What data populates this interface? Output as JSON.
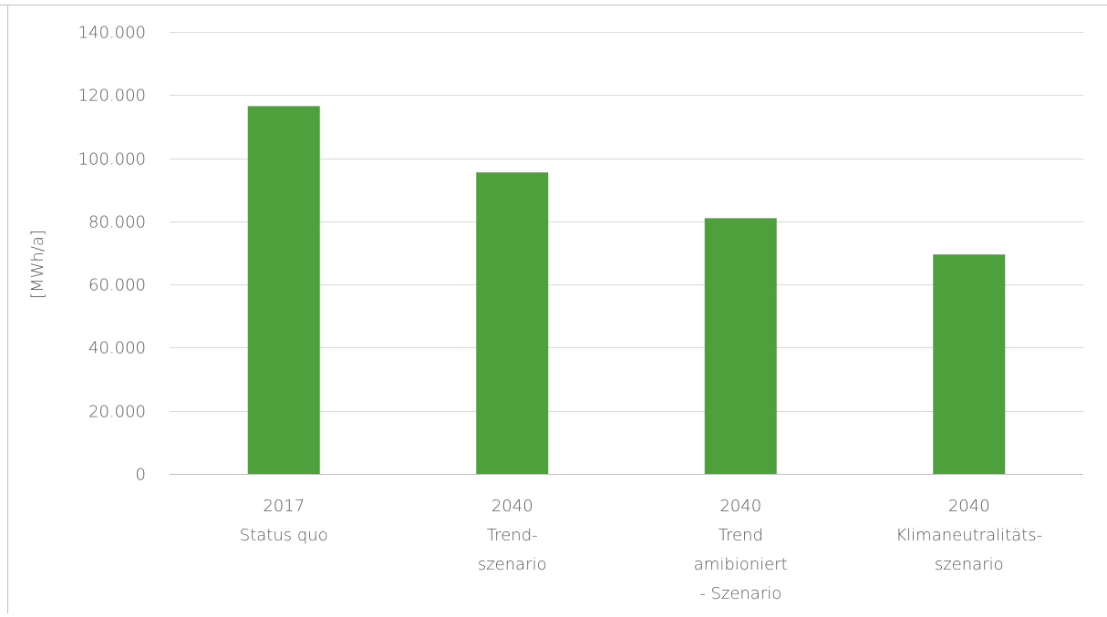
{
  "chart_data": {
    "type": "bar",
    "title": "",
    "xlabel": "",
    "ylabel": "[MWh/a]",
    "ylim": [
      0,
      140000
    ],
    "ytick_values": [
      0,
      20000,
      40000,
      60000,
      80000,
      100000,
      120000,
      140000
    ],
    "ytick_labels": [
      "0",
      "20.000",
      "40.000",
      "60.000",
      "80.000",
      "100.000",
      "120.000",
      "140.000"
    ],
    "categories": [
      [
        "2017",
        "Status quo"
      ],
      [
        "2040",
        "Trend-",
        "szenario"
      ],
      [
        "2040",
        "Trend",
        "amibioniert",
        "- Szenario"
      ],
      [
        "2040",
        "Klimaneutralitäts-",
        "szenario"
      ]
    ],
    "values": [
      116500,
      95500,
      81000,
      69500
    ],
    "bar_color": "#4ea03d",
    "grid": true,
    "legend": "none"
  }
}
